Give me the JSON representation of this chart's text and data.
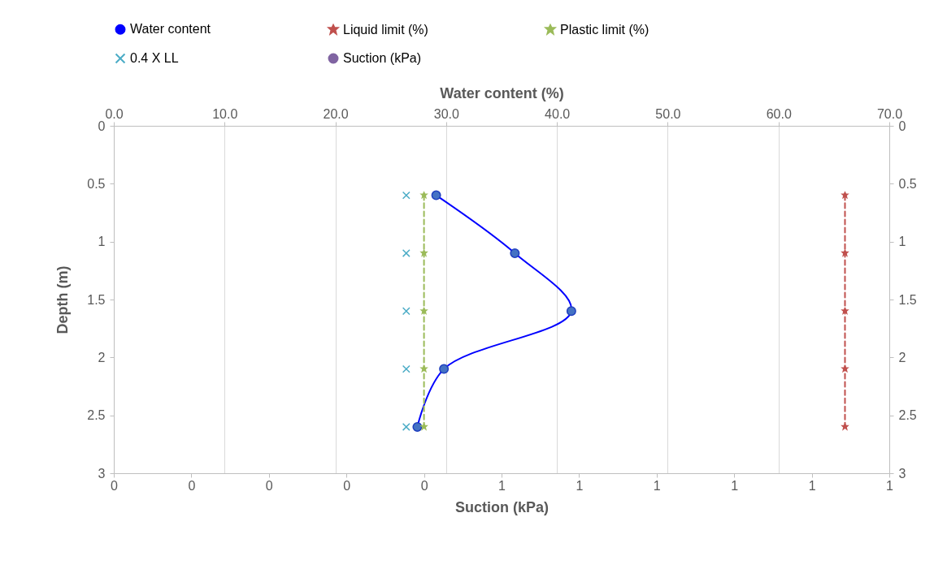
{
  "chart_data": {
    "type": "line",
    "xlabel": "Suction (kPa)",
    "x2label": "Water content (%)",
    "ylabel": "Depth (m)",
    "xlim": [
      0,
      1
    ],
    "xticks": [
      0,
      {
        "value": 0.1,
        "label": "0"
      },
      {
        "value": 0.2,
        "label": "0"
      },
      {
        "value": 0.3,
        "label": "0"
      },
      {
        "value": 0.4,
        "label": "0"
      },
      {
        "value": 0.5,
        "label": "1"
      },
      {
        "value": 0.6,
        "label": "1"
      },
      {
        "value": 0.7,
        "label": "1"
      },
      {
        "value": 0.8,
        "label": "1"
      },
      {
        "value": 0.9,
        "label": "1"
      },
      1
    ],
    "x2lim": [
      0,
      70
    ],
    "x2ticks": [
      {
        "value": 0,
        "label": "0.0"
      },
      {
        "value": 10,
        "label": "10.0"
      },
      {
        "value": 20,
        "label": "20.0"
      },
      {
        "value": 30,
        "label": "30.0"
      },
      {
        "value": 40,
        "label": "40.0"
      },
      {
        "value": 50,
        "label": "50.0"
      },
      {
        "value": 60,
        "label": "60.0"
      },
      {
        "value": 70,
        "label": "70.0"
      }
    ],
    "ylim": [
      3,
      0
    ],
    "yticks": [
      0,
      0.5,
      1,
      1.5,
      2,
      2.5,
      3
    ],
    "y2lim": [
      3,
      0
    ],
    "y2ticks": [
      0,
      0.5,
      1,
      1.5,
      2,
      2.5,
      3
    ],
    "grid": "x",
    "legend": "top",
    "series": [
      {
        "name": "Water content",
        "axis": "x2",
        "color": "#0000ff",
        "marker": "circle",
        "line_style": "solid",
        "x": [
          29.1,
          36.2,
          41.3,
          29.8,
          27.4
        ],
        "values": [
          0.6,
          1.1,
          1.6,
          2.1,
          2.6
        ]
      },
      {
        "name": "Liquid limit (%)",
        "axis": "x2",
        "color": "#c0504d",
        "marker": "star",
        "line_style": "dashed",
        "x": [
          66.0,
          66.0,
          66.0,
          66.0,
          66.0
        ],
        "values": [
          0.6,
          1.1,
          1.6,
          2.1,
          2.6
        ]
      },
      {
        "name": "Plastic limit (%)",
        "axis": "x2",
        "color": "#9bbb59",
        "marker": "star",
        "line_style": "dashed",
        "x": [
          28.0,
          28.0,
          28.0,
          28.0,
          28.0
        ],
        "values": [
          0.6,
          1.1,
          1.6,
          2.1,
          2.6
        ]
      },
      {
        "name": "0.4 X LL",
        "type": "scatter",
        "axis": "x2",
        "color": "#4bacc6",
        "marker": "cross",
        "x": [
          26.4,
          26.4,
          26.4,
          26.4,
          26.4
        ],
        "values": [
          0.6,
          1.1,
          1.6,
          2.1,
          2.6
        ]
      },
      {
        "name": "Suction (kPa)",
        "color": "#8064a2",
        "marker": "circle",
        "line_style": "solid"
      }
    ]
  }
}
